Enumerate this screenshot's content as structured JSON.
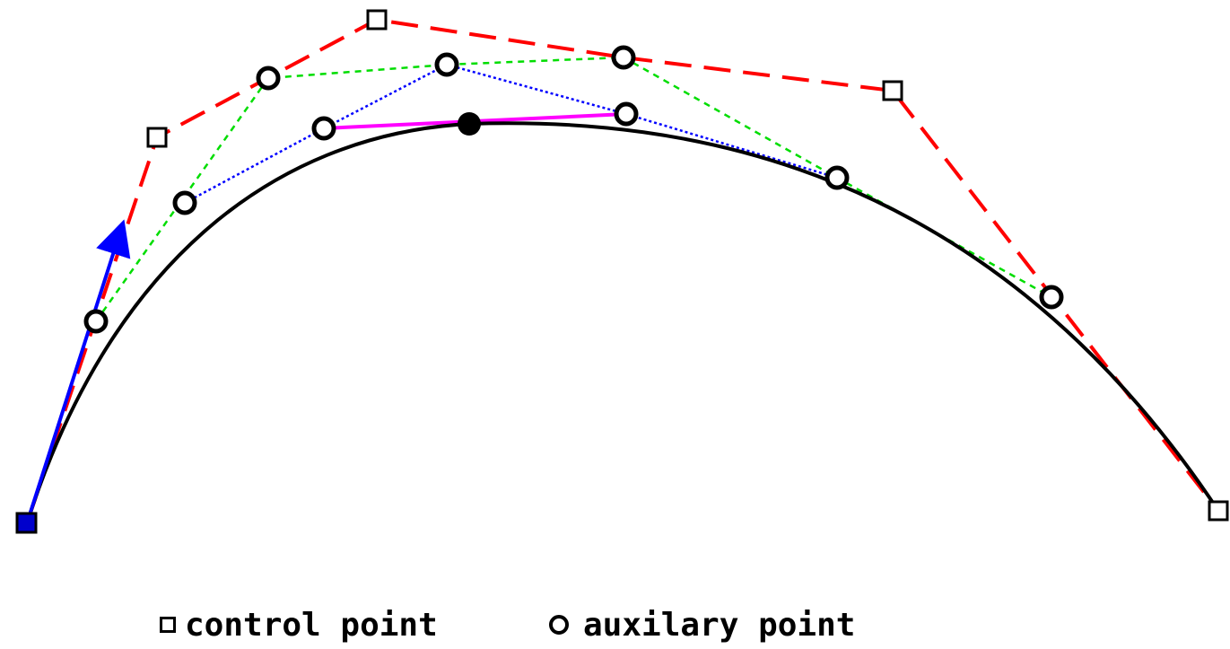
{
  "legend": {
    "control_label": "control point",
    "auxiliary_label": "auxilary point"
  },
  "colors": {
    "control_polygon": "#ff0000",
    "first_level": "#00dd00",
    "second_level": "#0000ff",
    "third_level": "#ff00ff",
    "curve": "#000000",
    "tangent": "#0000ff"
  },
  "icons": [
    "control-point-square-icon",
    "auxiliary-point-circle-icon",
    "tangent-arrow-icon"
  ]
}
